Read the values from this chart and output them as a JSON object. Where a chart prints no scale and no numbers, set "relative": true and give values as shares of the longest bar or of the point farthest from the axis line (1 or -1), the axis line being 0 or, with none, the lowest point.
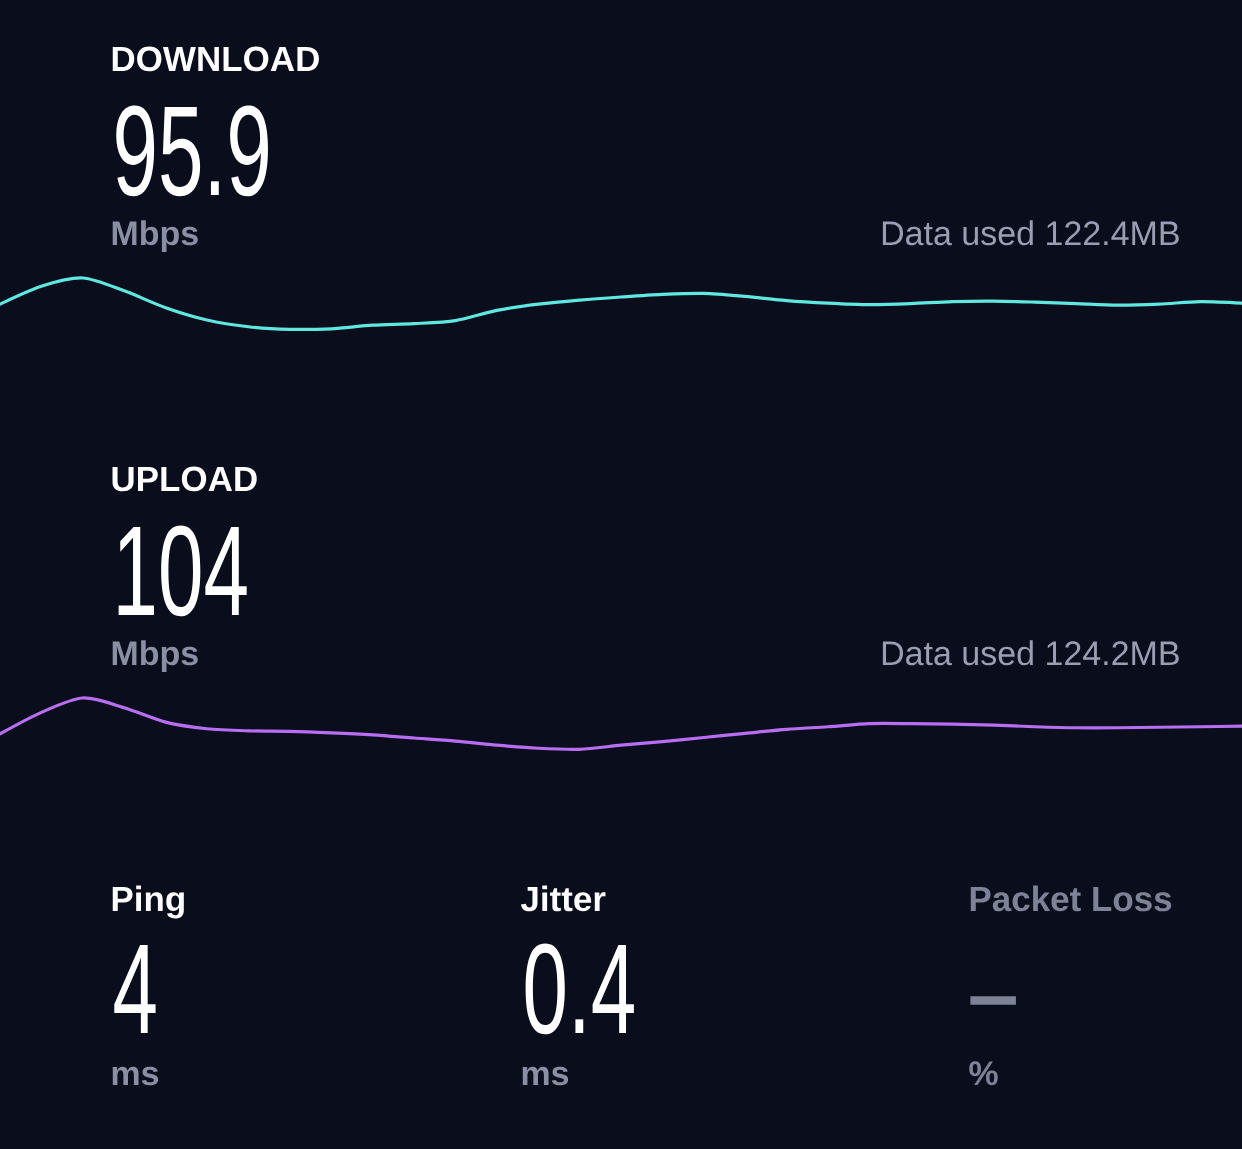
{
  "chart_data": [
    {
      "type": "line",
      "title": "DOWNLOAD",
      "relative": true,
      "categories": [
        null,
        null,
        null,
        null,
        null,
        null,
        null,
        null,
        null,
        null,
        null,
        null,
        null,
        null,
        null,
        null,
        null,
        null,
        null,
        null,
        null,
        null,
        null,
        null,
        null,
        null,
        null,
        null,
        null,
        null,
        null
      ],
      "series": [
        {
          "color": "#5fe8e0",
          "values": [
            0.49,
            0.84,
            1.0,
            0.75,
            0.42,
            0.18,
            0.05,
            0.0,
            0.01,
            0.08,
            0.11,
            0.17,
            0.37,
            0.49,
            0.57,
            0.63,
            0.68,
            0.7,
            0.64,
            0.56,
            0.51,
            0.48,
            0.5,
            0.54,
            0.55,
            0.53,
            0.5,
            0.47,
            0.49,
            0.54,
            0.51
          ]
        }
      ],
      "annotations": [
        "95.9",
        "Mbps",
        "Data used 122.4MB"
      ]
    },
    {
      "type": "line",
      "title": "UPLOAD",
      "relative": true,
      "categories": [
        null,
        null,
        null,
        null,
        null,
        null,
        null,
        null,
        null,
        null,
        null,
        null,
        null,
        null,
        null,
        null,
        null,
        null,
        null,
        null,
        null,
        null,
        null,
        null,
        null,
        null,
        null,
        null,
        null,
        null,
        null
      ],
      "series": [
        {
          "color": "#b86ef2",
          "values": [
            0.3,
            0.72,
            1.0,
            0.81,
            0.53,
            0.4,
            0.36,
            0.35,
            0.32,
            0.28,
            0.22,
            0.16,
            0.08,
            0.02,
            0.0,
            0.08,
            0.15,
            0.23,
            0.31,
            0.39,
            0.44,
            0.5,
            0.5,
            0.49,
            0.47,
            0.44,
            0.42,
            0.42,
            0.43,
            0.44,
            0.45
          ]
        }
      ],
      "annotations": [
        "104",
        "Mbps",
        "Data used 124.2MB"
      ]
    },
    {
      "type": "other",
      "title": "Ping",
      "annotations": [
        "4",
        "ms"
      ]
    },
    {
      "type": "other",
      "title": "Jitter",
      "annotations": [
        "0.4",
        "ms"
      ]
    },
    {
      "type": "other",
      "title": "Packet Loss",
      "annotations": [
        "–",
        "%"
      ]
    }
  ]
}
